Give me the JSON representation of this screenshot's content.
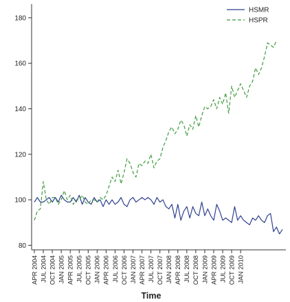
{
  "chart_data": {
    "type": "line",
    "title": "",
    "xlabel": "Time",
    "ylabel": "",
    "ylim": [
      78,
      186
    ],
    "y_ticks": [
      80,
      100,
      120,
      140,
      160,
      180
    ],
    "x_tick_labels": [
      "APR 2004",
      "JUL 2004",
      "OCT 2004",
      "JAN 2005",
      "APR 2005",
      "JUL 2005",
      "OCT 2005",
      "JAN 2006",
      "APR 2006",
      "JUL 2006",
      "OCT 2006",
      "JAN 2007",
      "APR 2007",
      "JUL 2007",
      "OCT 2007",
      "JAN 2008",
      "APR 2008",
      "JUL 2008",
      "OCT 2008",
      "JAN 2009",
      "APR 2009",
      "JUL 2009",
      "OCT 2009",
      "JAN 2010"
    ],
    "x_tick_start_index": 0,
    "x_tick_step": 3,
    "grid": false,
    "legend": "top-right",
    "series": [
      {
        "name": "HSMR",
        "color": "#2e3f8f",
        "dash": "solid",
        "values": [
          99,
          101,
          99,
          99,
          100,
          101,
          99,
          101,
          99,
          102,
          100,
          99,
          99,
          101,
          99,
          102,
          98,
          101,
          99,
          98,
          101,
          99,
          100,
          97,
          100,
          98,
          100,
          98,
          99,
          101,
          98,
          97,
          100,
          101,
          99,
          100,
          101,
          100,
          101,
          100,
          98,
          101,
          99,
          100,
          97,
          96,
          98,
          92,
          98,
          91,
          95,
          97,
          92,
          97,
          94,
          93,
          99,
          93,
          96,
          93,
          91,
          98,
          95,
          91,
          92,
          91,
          90,
          97,
          91,
          93,
          91,
          90,
          89,
          92,
          91,
          93,
          91,
          90,
          93,
          94,
          86,
          88,
          85,
          87
        ]
      },
      {
        "name": "HSPR",
        "color": "#3f9a3f",
        "dash": "dashed",
        "values": [
          91,
          95,
          96,
          108,
          100,
          98,
          101,
          101,
          98,
          100,
          104,
          100,
          102,
          98,
          100,
          100,
          102,
          99,
          98,
          100,
          100,
          99,
          101,
          100,
          102,
          106,
          110,
          108,
          113,
          107,
          112,
          118,
          116,
          112,
          110,
          116,
          115,
          117,
          116,
          120,
          114,
          117,
          118,
          123,
          126,
          130,
          132,
          129,
          131,
          135,
          133,
          128,
          133,
          131,
          137,
          132,
          137,
          141,
          140,
          141,
          144,
          140,
          145,
          142,
          147,
          138,
          150,
          145,
          148,
          151,
          148,
          145,
          150,
          152,
          158,
          155,
          158,
          163,
          169,
          168,
          167,
          170
        ]
      }
    ]
  }
}
